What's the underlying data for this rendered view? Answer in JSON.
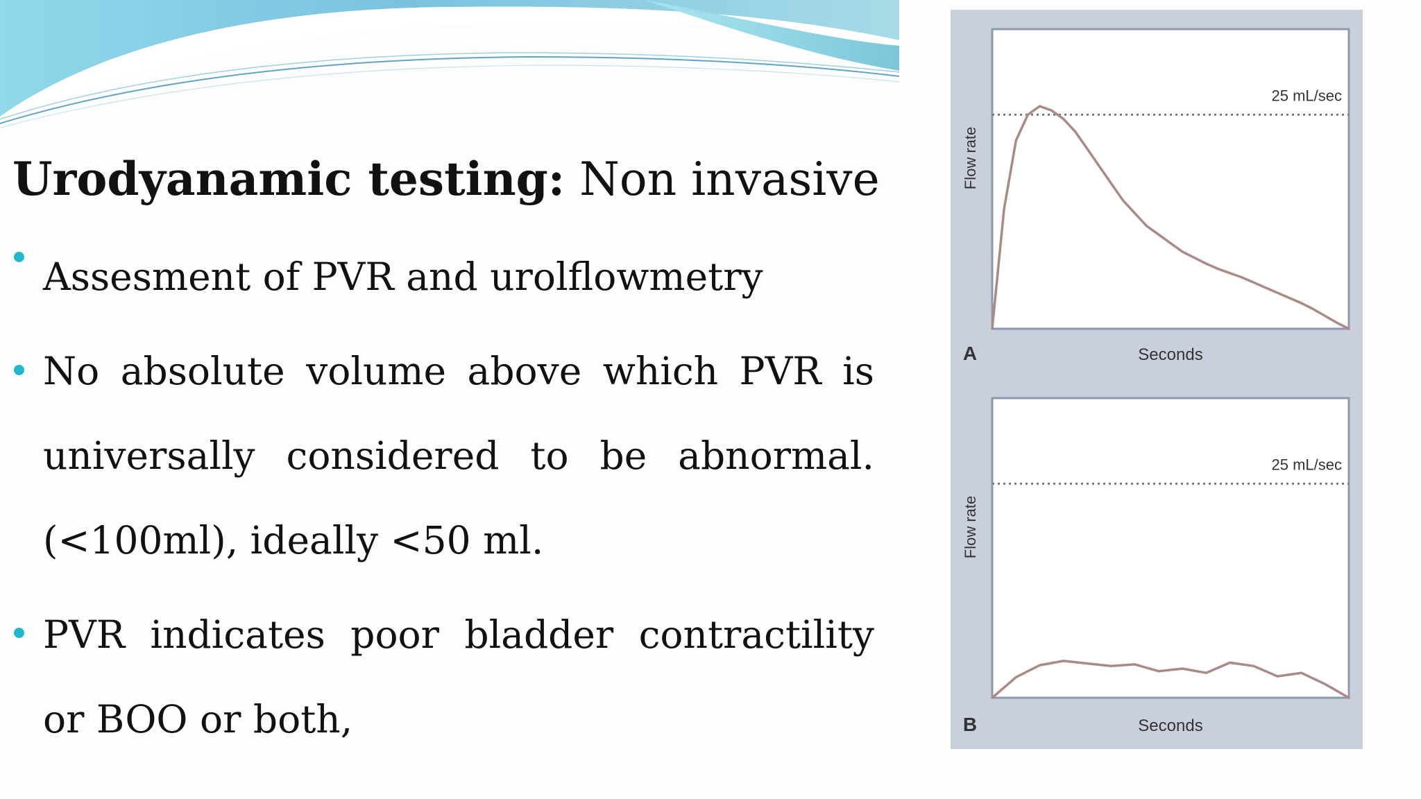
{
  "slide": {
    "title_lead": "Urodyanamic testing:",
    "title_rest": " Non invasive",
    "bullets": [
      {
        "text": "Assesment of PVR and urolflowmetry"
      },
      {
        "text": "No absolute volume above which PVR is universally considered to be abnormal. (<100ml), ideally <50 ml."
      },
      {
        "text": "PVR indicates poor bladder contractility or BOO or both,"
      }
    ],
    "theme": {
      "accent": "#22b8cc",
      "wave_light": "#bfe7f2",
      "wave_dark": "#6bbcd8"
    }
  },
  "figure": {
    "chart_data": [
      {
        "type": "line",
        "panel_label": "A",
        "xlabel": "Seconds",
        "ylabel": "Flow rate",
        "reference_line": {
          "value": 25,
          "label": "25 mL/sec",
          "style": "dotted"
        },
        "ylim": [
          0,
          35
        ],
        "x": [
          0,
          1,
          2,
          3,
          4,
          5,
          6,
          7,
          8,
          9,
          10,
          11,
          12,
          13,
          14,
          15,
          16,
          17,
          18,
          19,
          20,
          21,
          22,
          23,
          24,
          25,
          26,
          27,
          28,
          29,
          30
        ],
        "values": [
          0,
          14,
          22,
          25,
          26,
          25.5,
          24.5,
          23,
          21,
          19,
          17,
          15,
          13.5,
          12,
          11,
          10,
          9,
          8.3,
          7.6,
          7,
          6.5,
          6,
          5.4,
          4.8,
          4.2,
          3.6,
          3,
          2.3,
          1.5,
          0.7,
          0
        ]
      },
      {
        "type": "line",
        "panel_label": "B",
        "xlabel": "Seconds",
        "ylabel": "Flow rate",
        "reference_line": {
          "value": 25,
          "label": "25 mL/sec",
          "style": "dotted"
        },
        "ylim": [
          0,
          35
        ],
        "x": [
          0,
          2,
          4,
          6,
          8,
          10,
          12,
          14,
          16,
          18,
          20,
          22,
          24,
          26,
          28,
          30
        ],
        "values": [
          0,
          2.4,
          3.8,
          4.3,
          4,
          3.7,
          3.9,
          3.1,
          3.4,
          2.9,
          4.1,
          3.7,
          2.5,
          2.9,
          1.6,
          0
        ]
      }
    ],
    "colors": {
      "frame": "#c9cfdb",
      "plot_bg": "#ffffff",
      "plot_border": "#8f99ad",
      "curve": "#a98a84",
      "reference": "#7a7a7a",
      "label": "#333333"
    }
  }
}
